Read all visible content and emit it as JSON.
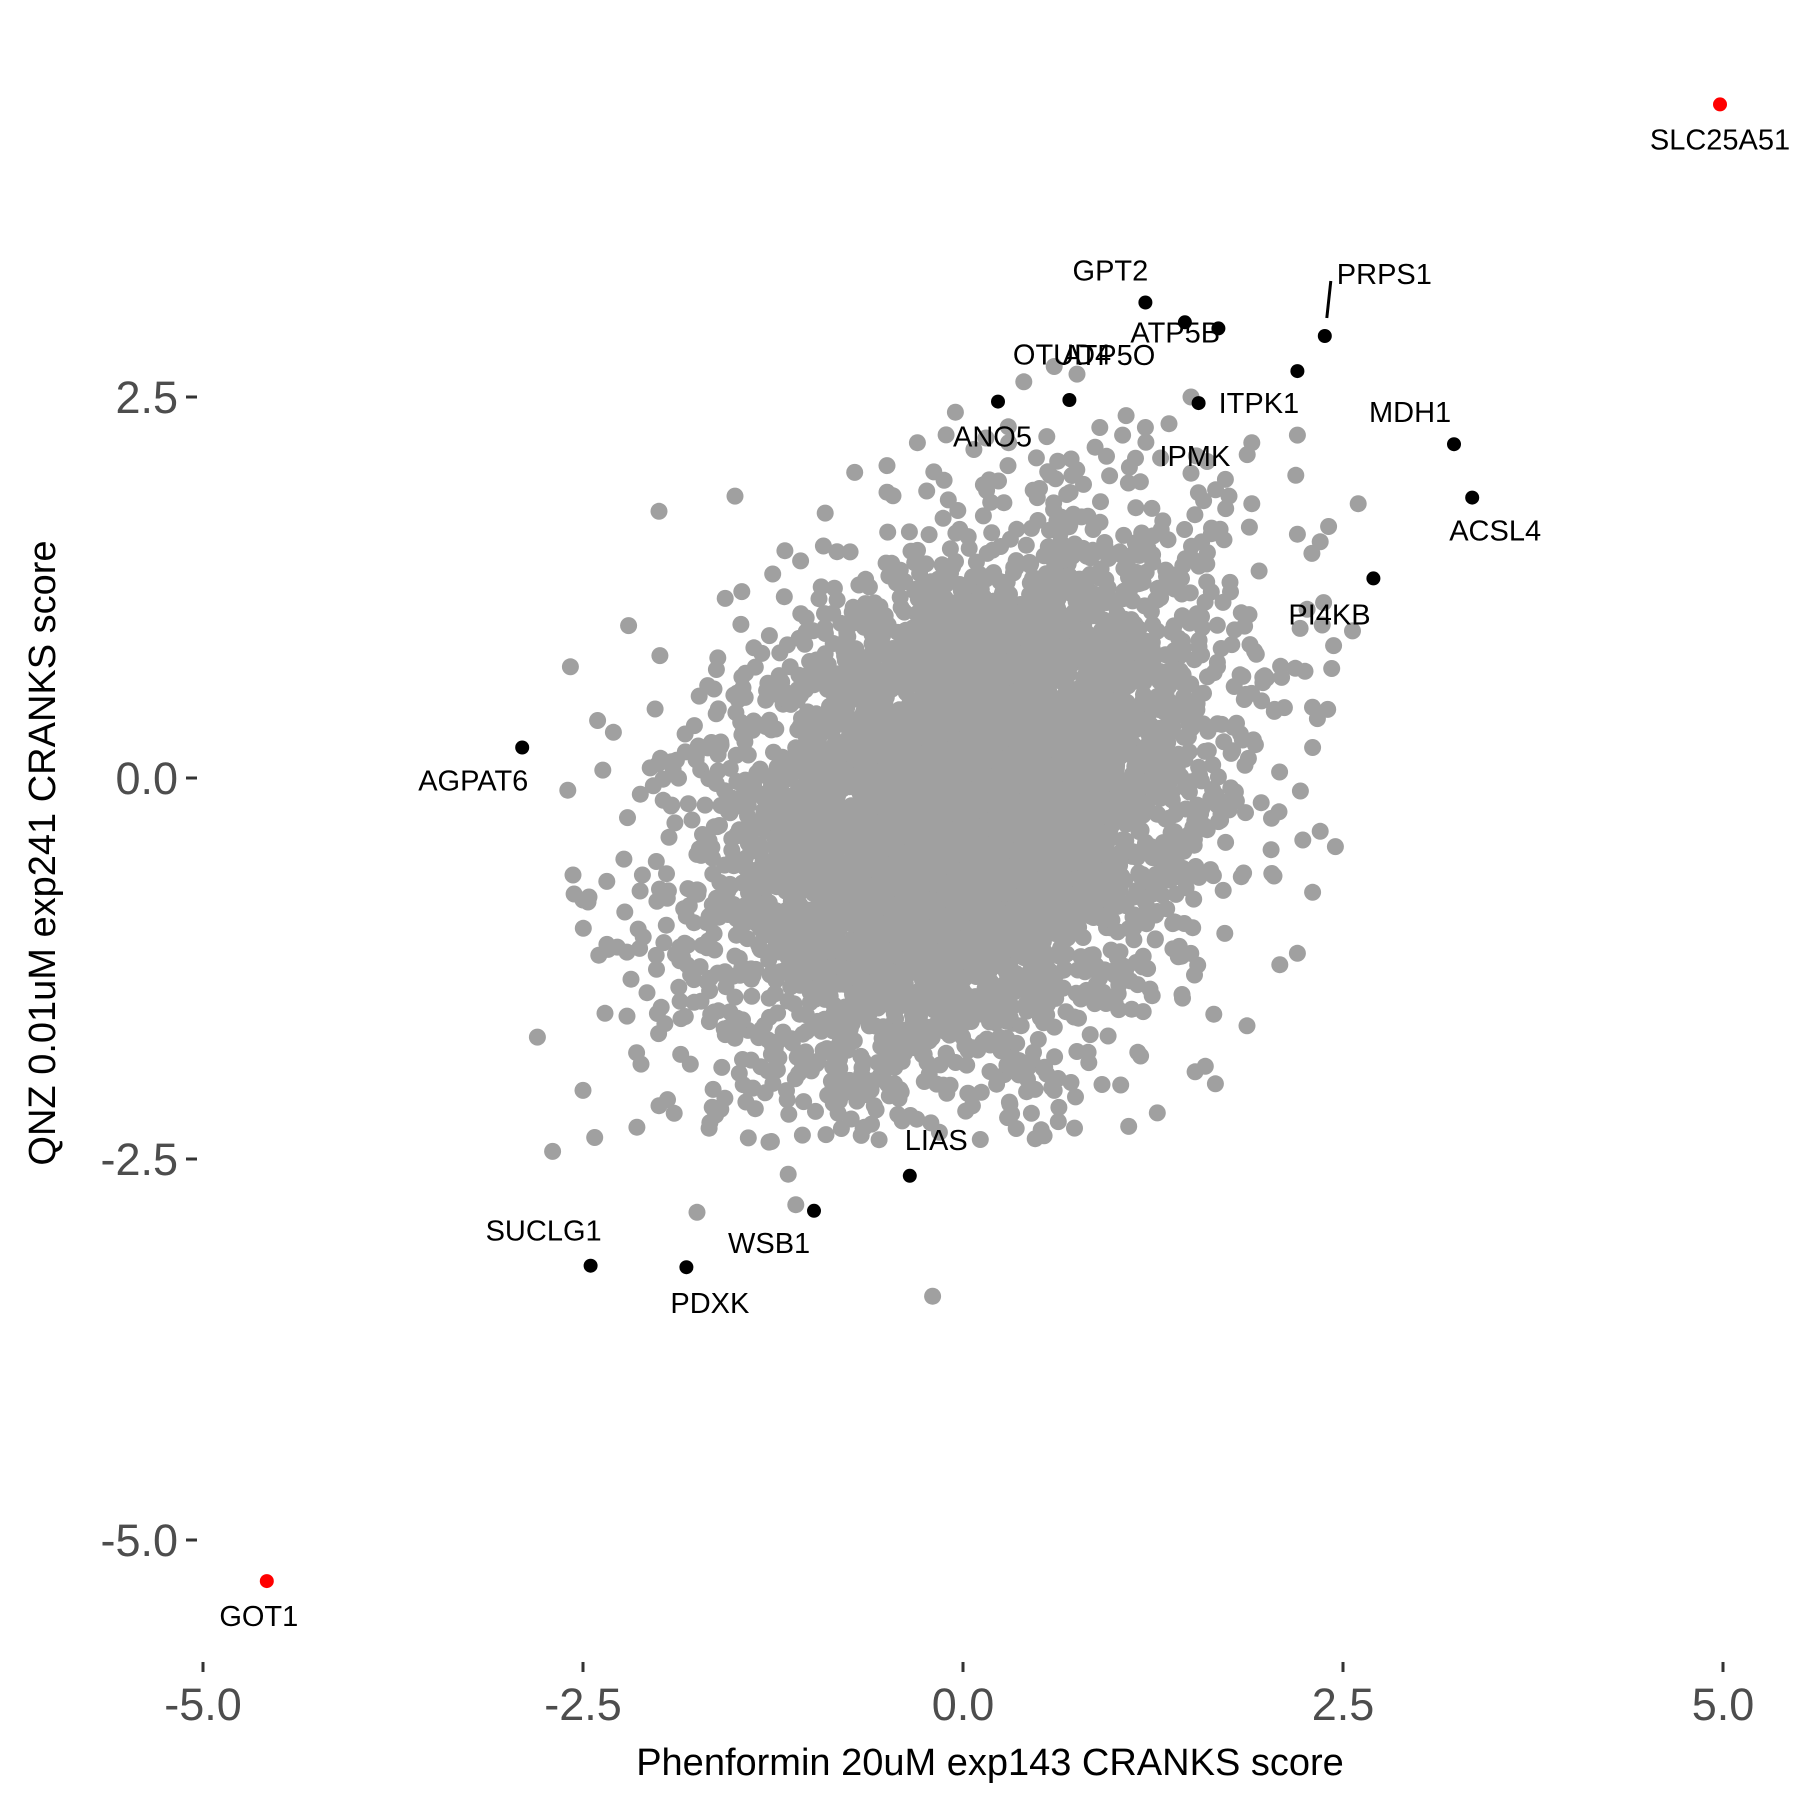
{
  "chart_data": {
    "type": "scatter",
    "xlabel": "Phenformin 20uM exp143 CRANKS score",
    "ylabel": "QNZ 0.01uM exp241 CRANKS score",
    "xlim": [
      -5.0,
      5.0
    ],
    "ylim": [
      -5.6,
      4.3
    ],
    "xticks": [
      "-5.0",
      "-2.5",
      "0.0",
      "2.5",
      "5.0"
    ],
    "yticks": [
      "-5.0",
      "-2.5",
      "0.0",
      "2.5"
    ],
    "colors": {
      "background": "#ffffff",
      "point": "#a0a0a0",
      "labeled": "#000000",
      "highlight": "#ff0000",
      "tick_text": "#4d4d4d"
    },
    "background_cloud": {
      "description_count_approx": 18000,
      "center": [
        0.0,
        -0.2
      ],
      "sd": [
        0.8,
        0.85
      ],
      "correlation": 0.3
    },
    "background_points_outliers": [
      [
        -2.0,
        1.75
      ],
      [
        -1.5,
        1.85
      ],
      [
        -2.2,
        1.0
      ],
      [
        -2.3,
        0.3
      ],
      [
        -2.6,
        -0.08
      ],
      [
        -2.8,
        -1.7
      ],
      [
        -2.5,
        -2.05
      ],
      [
        -2.0,
        -2.15
      ],
      [
        -1.9,
        -2.2
      ],
      [
        -2.7,
        -2.45
      ],
      [
        -1.75,
        -2.85
      ],
      [
        -1.1,
        -2.8
      ],
      [
        -1.15,
        -2.6
      ],
      [
        -0.8,
        -2.3
      ],
      [
        -0.2,
        -3.4
      ],
      [
        -0.4,
        -2.25
      ],
      [
        0.35,
        -2.3
      ],
      [
        0.45,
        -2.2
      ],
      [
        0.6,
        -2.05
      ],
      [
        1.15,
        -1.8
      ],
      [
        1.65,
        -1.55
      ],
      [
        2.2,
        -1.15
      ],
      [
        2.45,
        -0.45
      ],
      [
        2.3,
        -0.75
      ],
      [
        2.35,
        -0.35
      ],
      [
        2.3,
        0.2
      ],
      [
        2.25,
        0.7
      ],
      [
        2.05,
        0.45
      ],
      [
        2.35,
        1.55
      ],
      [
        2.2,
        1.6
      ],
      [
        2.6,
        1.8
      ],
      [
        1.9,
        1.8
      ],
      [
        1.75,
        1.85
      ],
      [
        1.9,
        2.2
      ],
      [
        2.2,
        2.25
      ],
      [
        1.5,
        2.5
      ],
      [
        1.2,
        2.3
      ],
      [
        1.05,
        2.25
      ],
      [
        0.6,
        2.7
      ],
      [
        0.4,
        2.6
      ],
      [
        0.75,
        2.65
      ],
      [
        -0.05,
        2.4
      ],
      [
        -0.5,
        2.05
      ],
      [
        -0.3,
        2.2
      ],
      [
        1.3,
        2.1
      ],
      [
        1.5,
        2.0
      ],
      [
        0.9,
        2.3
      ],
      [
        0.3,
        2.2
      ]
    ],
    "points": [
      {
        "label": "SLC25A51",
        "x": 4.98,
        "y": 4.42,
        "color": "#ff0000"
      },
      {
        "label": "GOT1",
        "x": -4.58,
        "y": -5.27,
        "color": "#ff0000"
      },
      {
        "label": "GPT2",
        "x": 1.2,
        "y": 3.12,
        "color": "#000000"
      },
      {
        "label": "PRPS1",
        "x": 2.38,
        "y": 2.9,
        "color": "#000000"
      },
      {
        "label": "ATP5B",
        "x": 1.68,
        "y": 2.95,
        "color": "#000000"
      },
      {
        "label": "ATP5O",
        "x": 0.7,
        "y": 2.48,
        "color": "#000000"
      },
      {
        "label": "ITPK1",
        "x": 1.55,
        "y": 2.46,
        "color": "#000000"
      },
      {
        "label": "ANO5",
        "x": 0.23,
        "y": 2.47,
        "color": "#000000"
      },
      {
        "label": "OTUD4",
        "x": 1.46,
        "y": 2.99,
        "color": "#000000"
      },
      {
        "label": "IPMK",
        "x": 2.2,
        "y": 2.67,
        "color": "#000000"
      },
      {
        "label": "MDH1",
        "x": 3.23,
        "y": 2.19,
        "color": "#000000"
      },
      {
        "label": "ACSL4",
        "x": 3.35,
        "y": 1.84,
        "color": "#000000"
      },
      {
        "label": "PI4KB",
        "x": 2.7,
        "y": 1.31,
        "color": "#000000"
      },
      {
        "label": "AGPAT6",
        "x": -2.9,
        "y": 0.2,
        "color": "#000000"
      },
      {
        "label": "LIAS",
        "x": -0.35,
        "y": -2.61,
        "color": "#000000"
      },
      {
        "label": "WSB1",
        "x": -0.98,
        "y": -2.84,
        "color": "#000000"
      },
      {
        "label": "SUCLG1",
        "x": -2.45,
        "y": -3.2,
        "color": "#000000"
      },
      {
        "label": "PDXK",
        "x": -1.82,
        "y": -3.21,
        "color": "#000000"
      }
    ]
  }
}
